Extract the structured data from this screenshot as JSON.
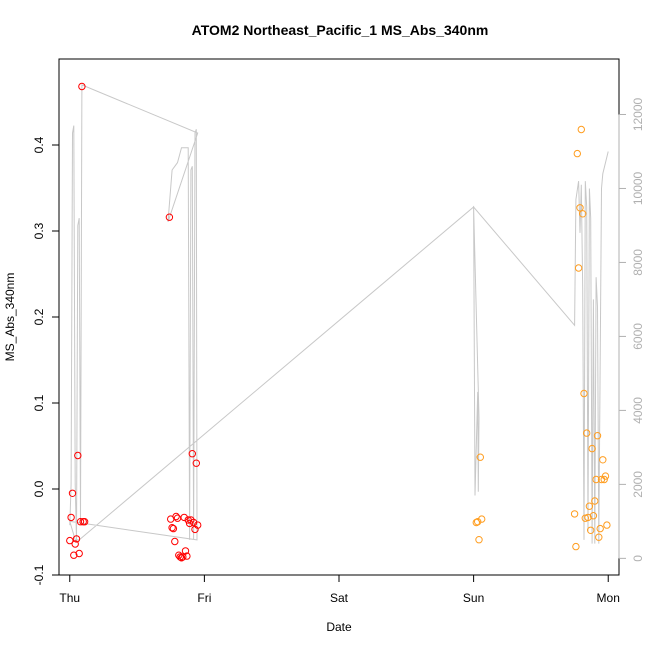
{
  "chart_data": {
    "type": "scatter",
    "title": "ATOM2 Northeast_Pacific_1 MS_Abs_340nm",
    "xlabel": "Date",
    "ylabel": "MS_Abs_340nm",
    "x_ticks": [
      {
        "day": 0,
        "label": "Thu"
      },
      {
        "day": 1,
        "label": "Fri"
      },
      {
        "day": 2,
        "label": "Sat"
      },
      {
        "day": 3,
        "label": "Sun"
      },
      {
        "day": 4,
        "label": "Mon"
      }
    ],
    "xlim": [
      -0.08,
      4.08
    ],
    "ylim": [
      -0.1,
      0.5
    ],
    "y_ticks": [
      -0.1,
      0.0,
      0.1,
      0.2,
      0.3,
      0.4
    ],
    "y_tick_labels": [
      "-0.1",
      "0.0",
      "0.1",
      "0.2",
      "0.3",
      "0.4"
    ],
    "y2lim": [
      -450,
      13500
    ],
    "y2_ticks": [
      0,
      2000,
      4000,
      6000,
      8000,
      10000,
      12000
    ],
    "y2_tick_labels": [
      "0",
      "2000",
      "4000",
      "6000",
      "8000",
      "10000",
      "12000"
    ],
    "colors": {
      "series1": "#ff0000",
      "series2": "#ff9d1f",
      "altitude": "#c8c8c8"
    },
    "series": [
      {
        "color": "#ff0000",
        "points": [
          [
            0.0,
            -0.06
          ],
          [
            0.01,
            -0.033
          ],
          [
            0.02,
            -0.005
          ],
          [
            0.03,
            -0.077
          ],
          [
            0.04,
            -0.064
          ],
          [
            0.05,
            -0.058
          ],
          [
            0.06,
            0.039
          ],
          [
            0.07,
            -0.075
          ],
          [
            0.08,
            -0.038
          ],
          [
            0.09,
            0.468
          ],
          [
            0.1,
            -0.038
          ],
          [
            0.11,
            -0.038
          ],
          [
            0.74,
            0.316
          ],
          [
            0.75,
            -0.035
          ],
          [
            0.76,
            -0.045
          ],
          [
            0.77,
            -0.046
          ],
          [
            0.78,
            -0.061
          ],
          [
            0.79,
            -0.032
          ],
          [
            0.8,
            -0.034
          ],
          [
            0.81,
            -0.077
          ],
          [
            0.82,
            -0.079
          ],
          [
            0.83,
            -0.08
          ],
          [
            0.84,
            -0.079
          ],
          [
            0.85,
            -0.033
          ],
          [
            0.86,
            -0.072
          ],
          [
            0.87,
            -0.078
          ],
          [
            0.88,
            -0.036
          ],
          [
            0.89,
            -0.04
          ],
          [
            0.9,
            -0.036
          ],
          [
            0.91,
            0.041
          ],
          [
            0.92,
            -0.039
          ],
          [
            0.93,
            -0.047
          ],
          [
            0.94,
            0.03
          ],
          [
            0.95,
            -0.042
          ]
        ]
      },
      {
        "color": "#ff9d1f",
        "points": [
          [
            3.02,
            -0.039
          ],
          [
            3.03,
            -0.038
          ],
          [
            3.04,
            -0.059
          ],
          [
            3.05,
            0.037
          ],
          [
            3.06,
            -0.035
          ],
          [
            3.75,
            -0.029
          ],
          [
            3.76,
            -0.067
          ],
          [
            3.77,
            0.39
          ],
          [
            3.78,
            0.257
          ],
          [
            3.79,
            0.327
          ],
          [
            3.8,
            0.418
          ],
          [
            3.81,
            0.32
          ],
          [
            3.82,
            0.111
          ],
          [
            3.83,
            -0.034
          ],
          [
            3.84,
            0.065
          ],
          [
            3.85,
            -0.033
          ],
          [
            3.86,
            -0.02
          ],
          [
            3.87,
            -0.048
          ],
          [
            3.88,
            0.047
          ],
          [
            3.89,
            -0.031
          ],
          [
            3.9,
            -0.014
          ],
          [
            3.91,
            0.011
          ],
          [
            3.92,
            0.062
          ],
          [
            3.93,
            -0.056
          ],
          [
            3.94,
            -0.046
          ],
          [
            3.95,
            0.011
          ],
          [
            3.96,
            0.034
          ],
          [
            3.97,
            0.011
          ],
          [
            3.98,
            0.015
          ],
          [
            3.99,
            -0.042
          ]
        ]
      }
    ],
    "altitude_line": {
      "color": "#c8c8c8",
      "axis": "right",
      "points": [
        [
          0.0,
          900
        ],
        [
          0.01,
          2000
        ],
        [
          0.02,
          11500
        ],
        [
          0.03,
          11700
        ],
        [
          0.04,
          2000
        ],
        [
          0.05,
          500
        ],
        [
          0.06,
          9000
        ],
        [
          0.07,
          9200
        ],
        [
          0.08,
          1000
        ],
        [
          0.09,
          12800
        ],
        [
          0.95,
          11500
        ],
        [
          0.73,
          9100
        ],
        [
          0.76,
          10500
        ],
        [
          0.78,
          10600
        ],
        [
          0.8,
          10700
        ],
        [
          0.83,
          11100
        ],
        [
          0.88,
          11100
        ],
        [
          0.89,
          500
        ],
        [
          0.9,
          10500
        ],
        [
          0.91,
          10600
        ],
        [
          0.92,
          500
        ],
        [
          0.93,
          11500
        ],
        [
          0.94,
          11600
        ],
        [
          0.945,
          500
        ],
        [
          0.0,
          1000
        ],
        [
          0.04,
          500
        ],
        [
          0.07,
          500
        ],
        [
          3.0,
          9500
        ],
        [
          3.01,
          1700
        ],
        [
          3.03,
          4500
        ],
        [
          3.035,
          1800
        ],
        [
          3.04,
          3800
        ],
        [
          3.0,
          9500
        ],
        [
          3.75,
          6300
        ],
        [
          3.76,
          9700
        ],
        [
          3.78,
          10200
        ],
        [
          3.79,
          8800
        ],
        [
          3.8,
          10100
        ],
        [
          3.81,
          7300
        ],
        [
          3.82,
          500
        ],
        [
          3.83,
          10200
        ],
        [
          3.84,
          9500
        ],
        [
          3.85,
          700
        ],
        [
          3.86,
          10000
        ],
        [
          3.87,
          9200
        ],
        [
          3.88,
          400
        ],
        [
          3.89,
          7000
        ],
        [
          3.9,
          400
        ],
        [
          3.91,
          7600
        ],
        [
          3.92,
          6800
        ],
        [
          3.93,
          400
        ],
        [
          3.95,
          10000
        ],
        [
          3.96,
          10400
        ],
        [
          4.0,
          11000
        ]
      ]
    }
  }
}
